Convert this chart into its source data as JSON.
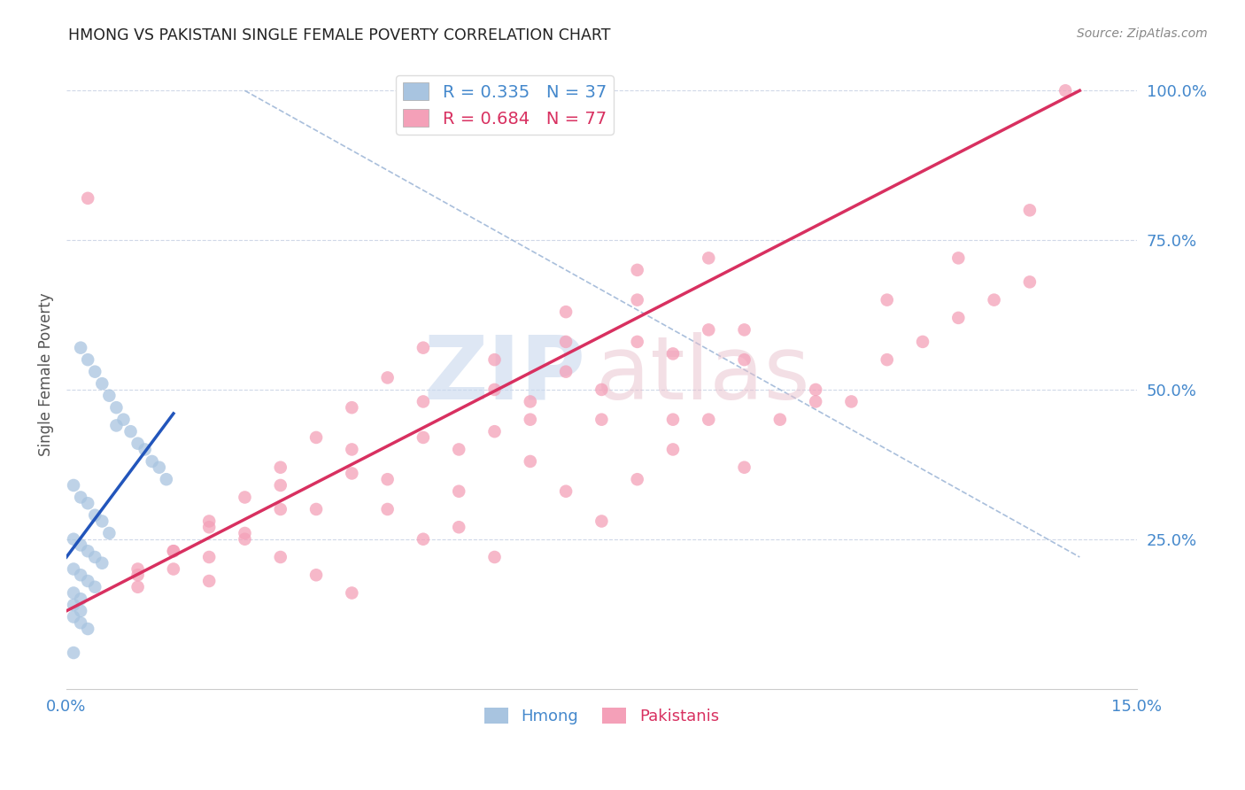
{
  "title": "HMONG VS PAKISTANI SINGLE FEMALE POVERTY CORRELATION CHART",
  "source": "Source: ZipAtlas.com",
  "ylabel": "Single Female Poverty",
  "legend_label_hmong": "Hmong",
  "legend_label_pakistani": "Pakistanis",
  "hmong_color": "#a8c4e0",
  "pakistani_color": "#f4a0b8",
  "hmong_line_color": "#2255bb",
  "pakistani_line_color": "#d83060",
  "dashed_line_color": "#a0b8d8",
  "grid_color": "#d0d8e8",
  "background_color": "#ffffff",
  "title_color": "#222222",
  "source_color": "#888888",
  "axis_label_color": "#4488cc",
  "hmong_x": [
    0.2,
    0.3,
    0.4,
    0.5,
    0.6,
    0.7,
    0.8,
    0.9,
    1.0,
    1.1,
    1.2,
    1.3,
    1.4,
    0.1,
    0.2,
    0.3,
    0.4,
    0.5,
    0.6,
    0.7,
    0.1,
    0.2,
    0.3,
    0.4,
    0.5,
    0.1,
    0.2,
    0.3,
    0.4,
    0.1,
    0.2,
    0.1,
    0.2,
    0.1,
    0.2,
    0.3,
    0.1
  ],
  "hmong_y": [
    57,
    55,
    53,
    51,
    49,
    47,
    45,
    43,
    41,
    40,
    38,
    37,
    35,
    34,
    32,
    31,
    29,
    28,
    26,
    44,
    25,
    24,
    23,
    22,
    21,
    20,
    19,
    18,
    17,
    16,
    15,
    14,
    13,
    12,
    11,
    10,
    6
  ],
  "pakistani_x": [
    0.3,
    1.0,
    1.5,
    2.0,
    2.5,
    3.0,
    3.5,
    4.0,
    4.5,
    5.0,
    5.5,
    6.0,
    6.5,
    7.0,
    7.5,
    8.0,
    8.5,
    9.0,
    9.5,
    10.0,
    10.5,
    11.0,
    11.5,
    12.0,
    12.5,
    13.0,
    13.5,
    14.0,
    1.0,
    1.5,
    2.0,
    2.5,
    3.0,
    3.5,
    4.0,
    4.5,
    5.0,
    5.5,
    6.0,
    6.5,
    7.0,
    7.5,
    8.0,
    8.5,
    9.0,
    9.5,
    1.0,
    2.0,
    3.0,
    4.0,
    5.0,
    6.0,
    7.0,
    8.0,
    2.0,
    3.0,
    4.0,
    5.0,
    6.0,
    7.0,
    8.0,
    9.0,
    1.5,
    2.5,
    3.5,
    4.5,
    5.5,
    6.5,
    7.5,
    8.5,
    9.5,
    10.5,
    11.5,
    12.5,
    13.5
  ],
  "pakistani_y": [
    82,
    20,
    23,
    18,
    26,
    22,
    19,
    16,
    30,
    25,
    27,
    22,
    38,
    33,
    28,
    35,
    40,
    45,
    37,
    45,
    50,
    48,
    55,
    58,
    62,
    65,
    68,
    100,
    19,
    23,
    28,
    32,
    37,
    42,
    47,
    52,
    57,
    33,
    43,
    48,
    53,
    45,
    58,
    45,
    60,
    55,
    17,
    27,
    34,
    40,
    48,
    55,
    63,
    70,
    22,
    30,
    36,
    42,
    50,
    58,
    65,
    72,
    20,
    25,
    30,
    35,
    40,
    45,
    50,
    56,
    60,
    48,
    65,
    72,
    80
  ],
  "hmong_line_x": [
    0.0,
    1.5
  ],
  "hmong_line_y": [
    22,
    46
  ],
  "pak_line_x": [
    0.0,
    14.2
  ],
  "pak_line_y": [
    13,
    100
  ],
  "dash_line_x": [
    2.5,
    14.2
  ],
  "dash_line_y": [
    100,
    22
  ],
  "xlim": [
    0.0,
    15.0
  ],
  "ylim": [
    0.0,
    105
  ],
  "yticks": [
    25,
    50,
    75,
    100
  ],
  "ytick_labels": [
    "25.0%",
    "50.0%",
    "75.0%",
    "100.0%"
  ]
}
